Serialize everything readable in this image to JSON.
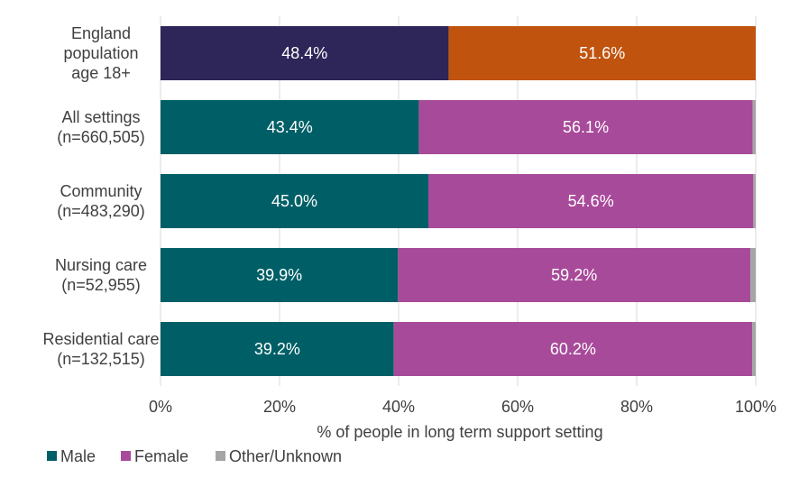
{
  "chart_data": {
    "type": "bar",
    "orientation": "horizontal",
    "stacked": true,
    "categories": [
      [
        "England",
        "population",
        "age 18+"
      ],
      [
        "All settings",
        "(n=660,505)"
      ],
      [
        "Community",
        "(n=483,290)"
      ],
      [
        "Nursing care",
        "(n=52,955)"
      ],
      [
        "Residential care",
        "(n=132,515)"
      ]
    ],
    "series": [
      {
        "name": "Male",
        "values": [
          48.4,
          43.4,
          45.0,
          39.9,
          39.2
        ],
        "labels": [
          "48.4%",
          "43.4%",
          "45.0%",
          "39.9%",
          "39.2%"
        ]
      },
      {
        "name": "Female",
        "values": [
          51.6,
          56.1,
          54.6,
          59.2,
          60.2
        ],
        "labels": [
          "51.6%",
          "56.1%",
          "54.6%",
          "59.2%",
          "60.2%"
        ]
      },
      {
        "name": "Other/Unknown",
        "values": [
          0,
          0.5,
          0.4,
          0.9,
          0.6
        ],
        "labels": [
          "",
          "",
          "",
          "",
          ""
        ]
      }
    ],
    "row_colors": [
      [
        "#2e2558",
        "#c0540f",
        "#a5a5a5"
      ],
      [
        "#005f66",
        "#a84a9a",
        "#a5a5a5"
      ],
      [
        "#005f66",
        "#a84a9a",
        "#a5a5a5"
      ],
      [
        "#005f66",
        "#a84a9a",
        "#a5a5a5"
      ],
      [
        "#005f66",
        "#a84a9a",
        "#a5a5a5"
      ]
    ],
    "legend_colors": [
      "#005f66",
      "#a84a9a",
      "#a5a5a5"
    ],
    "xlabel": "% of people in long term support setting",
    "xlim": [
      0,
      100
    ],
    "xticks": [
      0,
      20,
      40,
      60,
      80,
      100
    ],
    "xtick_labels": [
      "0%",
      "20%",
      "40%",
      "60%",
      "80%",
      "100%"
    ],
    "grid": true,
    "legend_position": "bottom-left"
  }
}
